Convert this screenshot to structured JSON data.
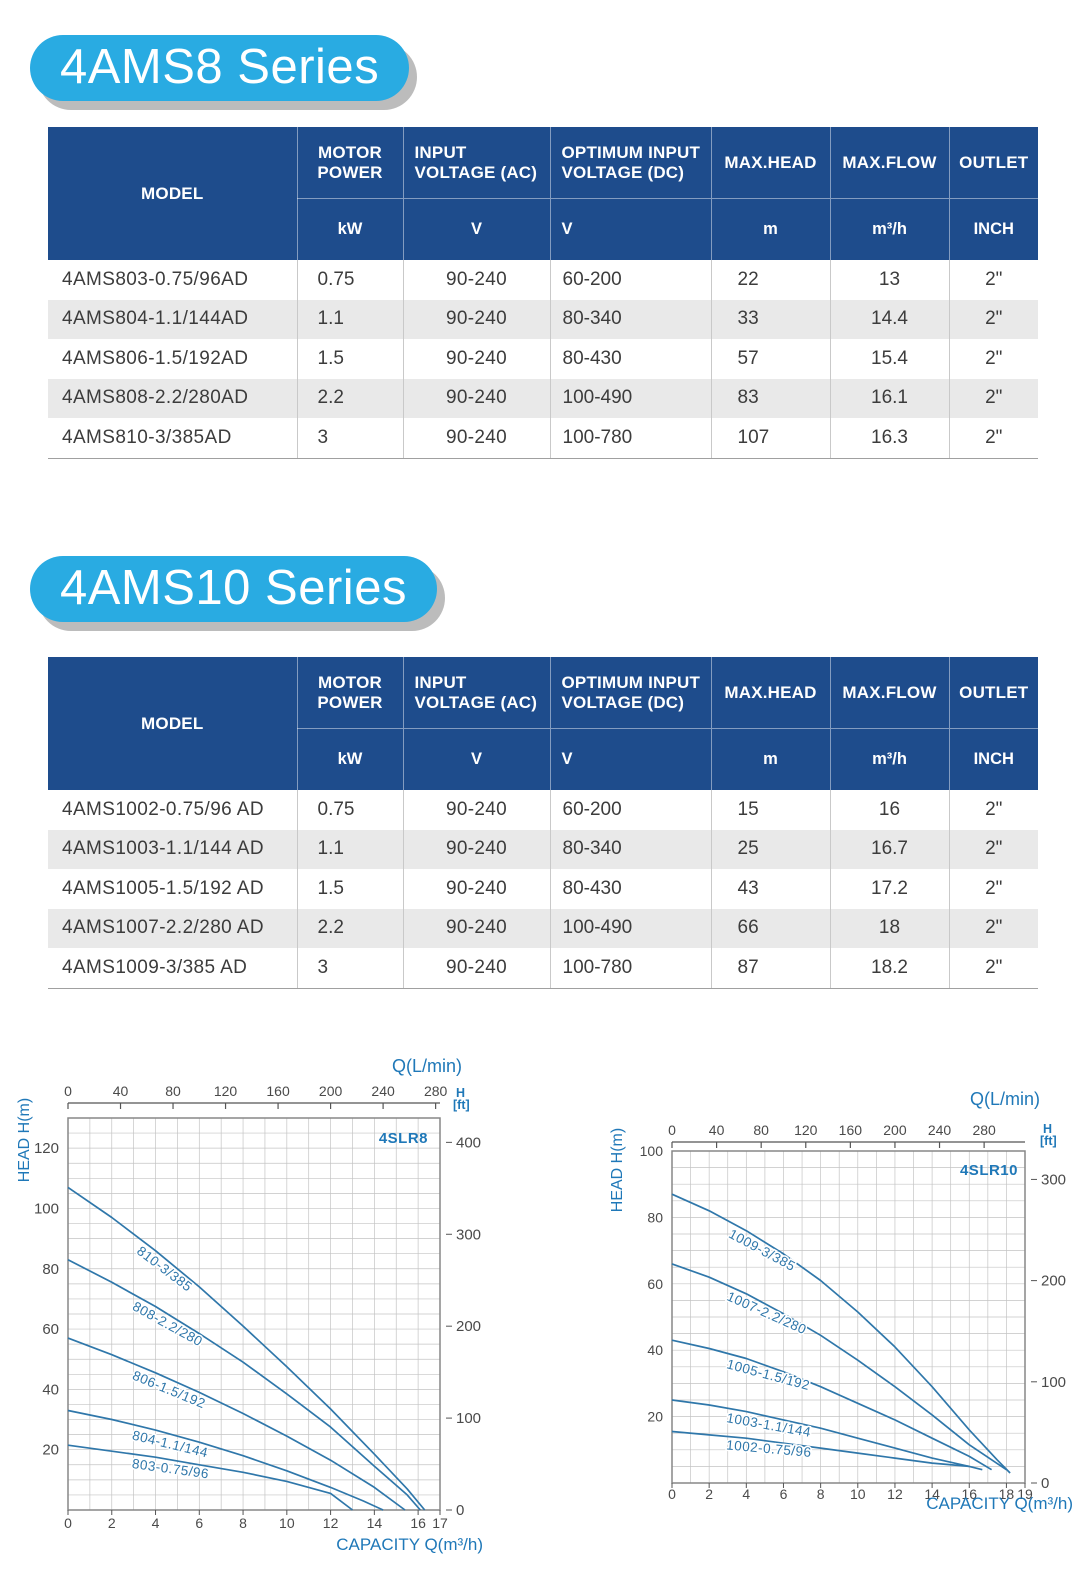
{
  "colors": {
    "banner_blue": "#29abe2",
    "header_blue": "#1e4c8c",
    "row_alt_gray": "#e9e9e9",
    "curve_blue": "#2f77aa",
    "chart_text_blue": "#1f78b8",
    "tick_text_gray": "#4a4a4a"
  },
  "sections": [
    {
      "title": "4AMS8 Series",
      "table": {
        "columns": [
          {
            "label": "MODEL",
            "unit": ""
          },
          {
            "label": "MOTOR POWER",
            "unit": "kW"
          },
          {
            "label": "INPUT VOLTAGE (AC)",
            "unit": "V"
          },
          {
            "label": "OPTIMUM INPUT VOLTAGE (DC)",
            "unit": "V"
          },
          {
            "label": "MAX.HEAD",
            "unit": "m"
          },
          {
            "label": "MAX.FLOW",
            "unit": "m³/h"
          },
          {
            "label": "OUTLET",
            "unit": "INCH"
          }
        ],
        "rows": [
          [
            "4AMS803-0.75/96AD",
            "0.75",
            "90-240",
            "60-200",
            "22",
            "13",
            "2\""
          ],
          [
            "4AMS804-1.1/144AD",
            "1.1",
            "90-240",
            "80-340",
            "33",
            "14.4",
            "2\""
          ],
          [
            "4AMS806-1.5/192AD",
            "1.5",
            "90-240",
            "80-430",
            "57",
            "15.4",
            "2\""
          ],
          [
            "4AMS808-2.2/280AD",
            "2.2",
            "90-240",
            "100-490",
            "83",
            "16.1",
            "2\""
          ],
          [
            "4AMS810-3/385AD",
            "3",
            "90-240",
            "100-780",
            "107",
            "16.3",
            "2\""
          ]
        ]
      }
    },
    {
      "title": "4AMS10 Series",
      "table": {
        "columns": [
          {
            "label": "MODEL",
            "unit": ""
          },
          {
            "label": "MOTOR POWER",
            "unit": "kW"
          },
          {
            "label": "INPUT VOLTAGE (AC)",
            "unit": "V"
          },
          {
            "label": "OPTIMUM INPUT VOLTAGE (DC)",
            "unit": "V"
          },
          {
            "label": "MAX.HEAD",
            "unit": "m"
          },
          {
            "label": "MAX.FLOW",
            "unit": "m³/h"
          },
          {
            "label": "OUTLET",
            "unit": "INCH"
          }
        ],
        "rows": [
          [
            "4AMS1002-0.75/96 AD",
            "0.75",
            "90-240",
            "60-200",
            "15",
            "16",
            "2\""
          ],
          [
            "4AMS1003-1.1/144 AD",
            "1.1",
            "90-240",
            "80-340",
            "25",
            "16.7",
            "2\""
          ],
          [
            "4AMS1005-1.5/192 AD",
            "1.5",
            "90-240",
            "80-430",
            "43",
            "17.2",
            "2\""
          ],
          [
            "4AMS1007-2.2/280 AD",
            "2.2",
            "90-240",
            "100-490",
            "66",
            "18",
            "2\""
          ],
          [
            "4AMS1009-3/385 AD",
            "3",
            "90-240",
            "100-780",
            "87",
            "18.2",
            "2\""
          ]
        ]
      }
    }
  ],
  "chart_data": [
    {
      "type": "line",
      "name": "4SLR8",
      "top_axis_label": "Q(L/min)",
      "left_axis_label": "HEAD H(m)",
      "right_axis_label_line1": "H",
      "right_axis_label_line2": "[ft]",
      "bottom_axis_label": "CAPACITY Q(m³/h)",
      "xlim": [
        0,
        17
      ],
      "ylim": [
        0,
        130
      ],
      "x_bottom_ticks": [
        0,
        2,
        4,
        6,
        8,
        10,
        12,
        14,
        16,
        17
      ],
      "x_top_ticks_lmin": [
        0,
        40,
        80,
        120,
        160,
        200,
        240,
        280
      ],
      "y_left_ticks": [
        20,
        40,
        60,
        80,
        100,
        120
      ],
      "y_right_ticks_ft": [
        0,
        100,
        200,
        300,
        400
      ],
      "grid_step_x": 1,
      "grid_step_y": 5,
      "grid": true,
      "series": [
        {
          "name": "810-3/385",
          "label_x": 3.1,
          "label_dy": 17,
          "points": [
            [
              0,
              107
            ],
            [
              2,
              97
            ],
            [
              4,
              86
            ],
            [
              6,
              74
            ],
            [
              8,
              61
            ],
            [
              10,
              47.5
            ],
            [
              12,
              33.5
            ],
            [
              14,
              18.5
            ],
            [
              15.5,
              7
            ],
            [
              16.3,
              0
            ]
          ]
        },
        {
          "name": "808-2.2/280",
          "label_x": 2.9,
          "label_dy": 16,
          "points": [
            [
              0,
              83
            ],
            [
              2,
              75.5
            ],
            [
              4,
              67.5
            ],
            [
              6,
              58.5
            ],
            [
              8,
              49
            ],
            [
              10,
              38.5
            ],
            [
              12,
              27.5
            ],
            [
              14,
              14.5
            ],
            [
              15.5,
              5
            ],
            [
              16.1,
              0
            ]
          ]
        },
        {
          "name": "806-1.5/192",
          "label_x": 2.9,
          "label_dy": 16,
          "points": [
            [
              0,
              57
            ],
            [
              2,
              51.5
            ],
            [
              4,
              45.5
            ],
            [
              6,
              39
            ],
            [
              8,
              32
            ],
            [
              10,
              24.5
            ],
            [
              12,
              16.5
            ],
            [
              14,
              7.5
            ],
            [
              15.4,
              0
            ]
          ]
        },
        {
          "name": "804-1.1/144",
          "label_x": 2.9,
          "label_dy": 15,
          "points": [
            [
              0,
              33
            ],
            [
              2,
              30
            ],
            [
              4,
              26.5
            ],
            [
              6,
              22.5
            ],
            [
              8,
              18
            ],
            [
              10,
              13
            ],
            [
              12,
              7.5
            ],
            [
              13.5,
              3
            ],
            [
              14.4,
              0
            ]
          ]
        },
        {
          "name": "803-0.75/96",
          "label_x": 2.9,
          "label_dy": 14,
          "points": [
            [
              0,
              21.5
            ],
            [
              2,
              19.5
            ],
            [
              4,
              17.5
            ],
            [
              6,
              15
            ],
            [
              8,
              12.5
            ],
            [
              10,
              9.5
            ],
            [
              12,
              5.5
            ],
            [
              13,
              0
            ]
          ]
        }
      ]
    },
    {
      "type": "line",
      "name": "4SLR10",
      "top_axis_label": "Q(L/min)",
      "left_axis_label": "HEAD H(m)",
      "right_axis_label_line1": "H",
      "right_axis_label_line2": "[ft]",
      "bottom_axis_label": "CAPACITY Q(m³/h)",
      "xlim": [
        0,
        19
      ],
      "ylim": [
        0,
        100
      ],
      "x_bottom_ticks": [
        0,
        2,
        4,
        6,
        8,
        10,
        12,
        14,
        16,
        18,
        19
      ],
      "x_top_ticks_lmin": [
        0,
        40,
        80,
        120,
        160,
        200,
        240,
        280
      ],
      "y_left_ticks": [
        20,
        40,
        60,
        80,
        100
      ],
      "y_right_ticks_ft": [
        0,
        100,
        200,
        300
      ],
      "grid_step_x": 1,
      "grid_step_y": 5,
      "grid": true,
      "series": [
        {
          "name": "1009-3/385",
          "label_x": 3.0,
          "label_dy": 16,
          "points": [
            [
              0,
              87
            ],
            [
              2,
              82
            ],
            [
              4,
              76
            ],
            [
              6,
              69
            ],
            [
              8,
              61
            ],
            [
              10,
              51.5
            ],
            [
              12,
              41
            ],
            [
              14,
              29
            ],
            [
              16,
              16
            ],
            [
              17.5,
              7
            ],
            [
              18.2,
              3
            ]
          ]
        },
        {
          "name": "1007-2.2/280",
          "label_x": 2.9,
          "label_dy": 15,
          "points": [
            [
              0,
              66
            ],
            [
              2,
              62
            ],
            [
              4,
              57
            ],
            [
              6,
              51
            ],
            [
              8,
              44.5
            ],
            [
              10,
              37
            ],
            [
              12,
              29
            ],
            [
              14,
              20.5
            ],
            [
              16,
              11.5
            ],
            [
              18,
              4
            ]
          ]
        },
        {
          "name": "1005-1.5/192",
          "label_x": 2.9,
          "label_dy": 15,
          "points": [
            [
              0,
              43
            ],
            [
              2,
              40.5
            ],
            [
              4,
              37.5
            ],
            [
              6,
              33.5
            ],
            [
              8,
              29
            ],
            [
              10,
              24
            ],
            [
              12,
              19
            ],
            [
              14,
              13.5
            ],
            [
              16,
              8
            ],
            [
              17.2,
              4
            ]
          ]
        },
        {
          "name": "1003-1.1/144",
          "label_x": 2.9,
          "label_dy": 14,
          "points": [
            [
              0,
              25
            ],
            [
              2,
              23.5
            ],
            [
              4,
              21.5
            ],
            [
              6,
              19
            ],
            [
              8,
              16.5
            ],
            [
              10,
              13.5
            ],
            [
              12,
              10.5
            ],
            [
              14,
              7.5
            ],
            [
              16,
              5
            ],
            [
              16.7,
              4
            ]
          ]
        },
        {
          "name": "1002-0.75/96",
          "label_x": 2.9,
          "label_dy": 13,
          "points": [
            [
              0,
              15.5
            ],
            [
              2,
              14.5
            ],
            [
              4,
              13.5
            ],
            [
              6,
              12
            ],
            [
              8,
              10.5
            ],
            [
              10,
              9
            ],
            [
              12,
              7.5
            ],
            [
              14,
              6
            ],
            [
              16,
              5
            ]
          ]
        }
      ]
    }
  ]
}
